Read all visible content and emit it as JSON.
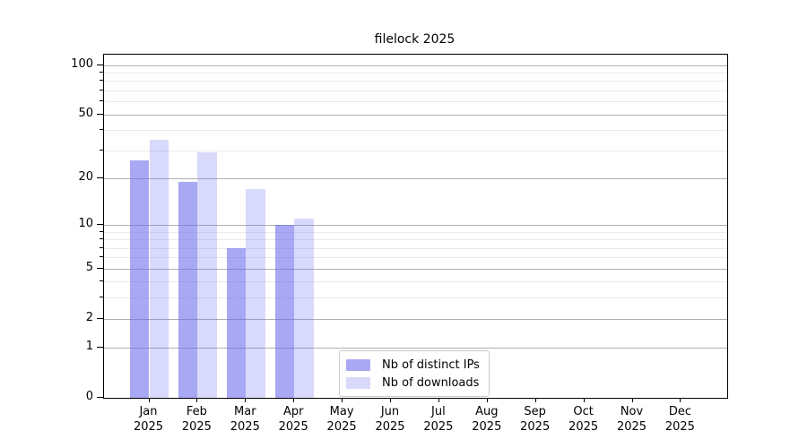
{
  "chart_data": {
    "type": "bar",
    "title": "filelock 2025",
    "categories": [
      "Jan",
      "Feb",
      "Mar",
      "Apr",
      "May",
      "Jun",
      "Jul",
      "Aug",
      "Sep",
      "Oct",
      "Nov",
      "Dec"
    ],
    "x_tick_line2": "2025",
    "series": [
      {
        "name": "Nb of distinct IPs",
        "color": "rgba(102,102,238,0.57)",
        "values": [
          26,
          19,
          7,
          10,
          null,
          null,
          null,
          null,
          null,
          null,
          null,
          null
        ]
      },
      {
        "name": "Nb of downloads",
        "color": "rgba(102,102,238,0.25)",
        "values": [
          35,
          29,
          17,
          11,
          null,
          null,
          null,
          null,
          null,
          null,
          null,
          null
        ]
      }
    ],
    "y_scale": "log1p",
    "y_major_ticks": [
      0,
      1,
      2,
      5,
      10,
      20,
      50,
      100
    ],
    "y_minor_ticks": [
      3,
      4,
      6,
      7,
      8,
      9,
      30,
      40,
      60,
      70,
      80,
      90
    ],
    "ylim": [
      0,
      116
    ],
    "xlabel": "",
    "ylabel": "",
    "grid": true,
    "legend_position": "lower-center-inside"
  },
  "colors": {
    "background": "#ffffff",
    "grid_major": "#b0b0b0",
    "grid_minor": "#e9e9e9",
    "axis": "#000000",
    "text": "#000000",
    "legend_border": "#cccccc"
  }
}
